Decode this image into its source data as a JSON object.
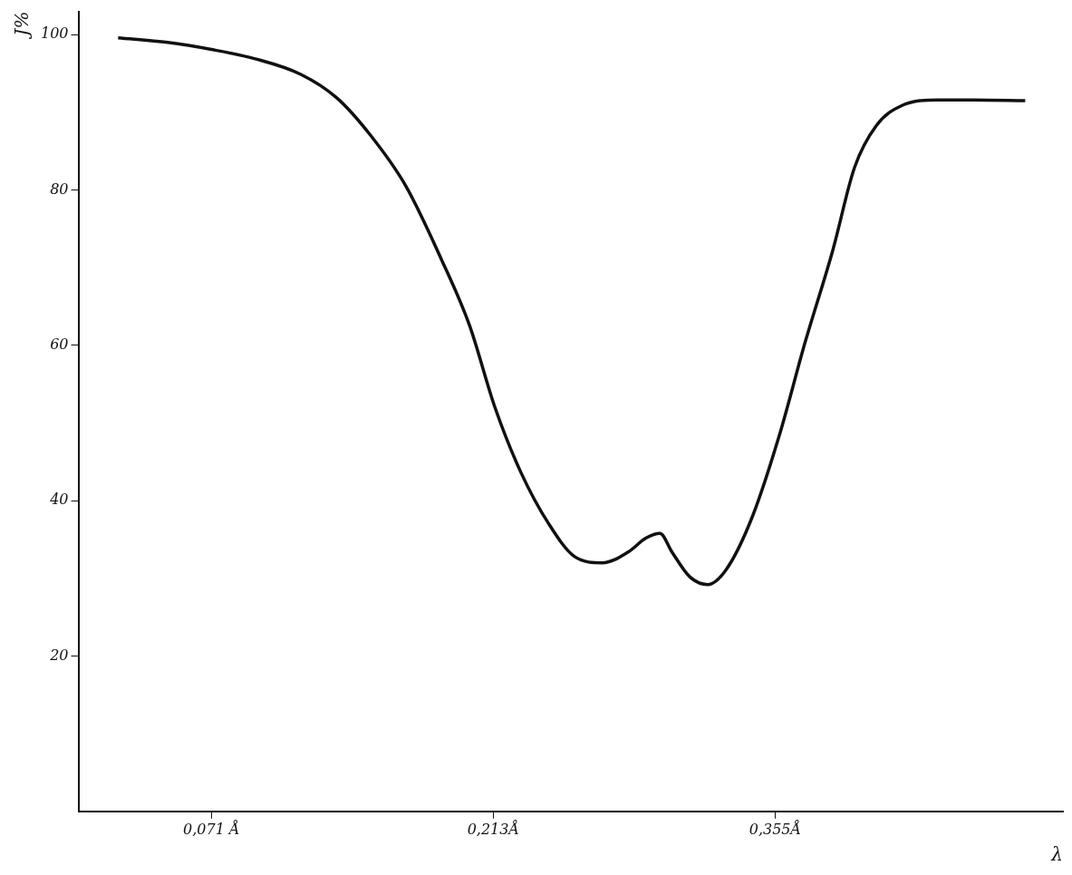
{
  "chart_data": {
    "type": "line",
    "xlabel": "λ",
    "ylabel": "J%",
    "xlim": [
      0.004,
      0.5
    ],
    "ylim": [
      0,
      103
    ],
    "xticks": [
      {
        "value": 0.071,
        "label": "0,071 Å"
      },
      {
        "value": 0.213,
        "label": "0,213Å"
      },
      {
        "value": 0.355,
        "label": "0,355Å"
      }
    ],
    "yticks": [
      20,
      40,
      60,
      80,
      100
    ],
    "grid": false,
    "legend": false,
    "marker": "none",
    "line_style": "solid",
    "series": [
      {
        "color": "#111111",
        "x": [
          0.024,
          0.049,
          0.071,
          0.093,
          0.116,
          0.134,
          0.151,
          0.169,
          0.187,
          0.201,
          0.214,
          0.227,
          0.241,
          0.254,
          0.268,
          0.281,
          0.29,
          0.297,
          0.303,
          0.312,
          0.321,
          0.33,
          0.343,
          0.357,
          0.37,
          0.384,
          0.395,
          0.406,
          0.419,
          0.437,
          0.455,
          0.481
        ],
        "values": [
          99.6,
          99.0,
          98.1,
          96.9,
          94.9,
          91.9,
          87.1,
          80.5,
          71.0,
          62.6,
          51.9,
          43.6,
          37.0,
          32.8,
          32.0,
          33.4,
          35.2,
          35.8,
          33.4,
          30.2,
          29.2,
          31.0,
          37.6,
          48.3,
          60.3,
          72.2,
          82.9,
          88.3,
          90.9,
          91.6,
          91.6,
          91.5
        ]
      }
    ]
  }
}
